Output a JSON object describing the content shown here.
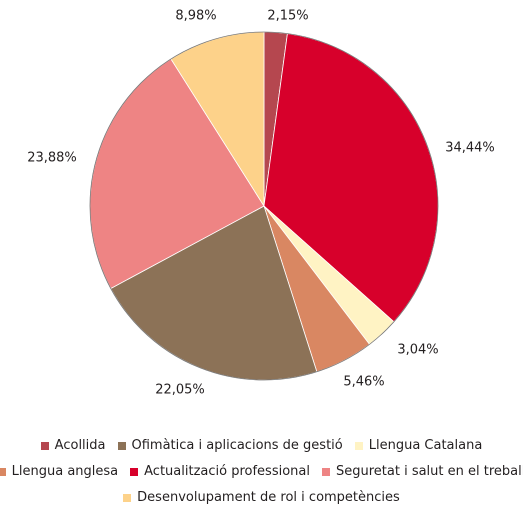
{
  "chart_data": {
    "type": "pie",
    "title": "",
    "categories": [
      "Acollida",
      "Actualització professional",
      "Llengua Catalana",
      "Llengua anglesa",
      "Ofimàtica i aplicacions de gestió",
      "Seguretat i salut en el treball",
      "Desenvolupament de rol i competències"
    ],
    "values": [
      2.15,
      34.44,
      3.04,
      5.46,
      22.05,
      23.88,
      8.98
    ],
    "labels": [
      "2,15%",
      "34,44%",
      "3,04%",
      "5,46%",
      "22,05%",
      "23,88%",
      "8,98%"
    ],
    "colors": [
      "#b5474f",
      "#d7002b",
      "#fff3c4",
      "#d98762",
      "#8c7257",
      "#ee8484",
      "#fdd28a"
    ],
    "start": "12 o'clock",
    "direction": "clockwise",
    "legend": {
      "position": "bottom",
      "rows": [
        [
          {
            "label": "Acollida",
            "color": "#b5474f"
          },
          {
            "label": "Ofimàtica i aplicacions de gestió",
            "color": "#8c7257"
          },
          {
            "label": "Llengua Catalana",
            "color": "#fff3c4"
          }
        ],
        [
          {
            "label": "Llengua anglesa",
            "color": "#d98762"
          },
          {
            "label": "Actualització professional",
            "color": "#d7002b"
          },
          {
            "label": "Seguretat i salut en el treball",
            "color": "#ee8484"
          }
        ],
        [
          {
            "label": "Desenvolupament de rol i competències",
            "color": "#fdd28a"
          }
        ]
      ]
    }
  }
}
